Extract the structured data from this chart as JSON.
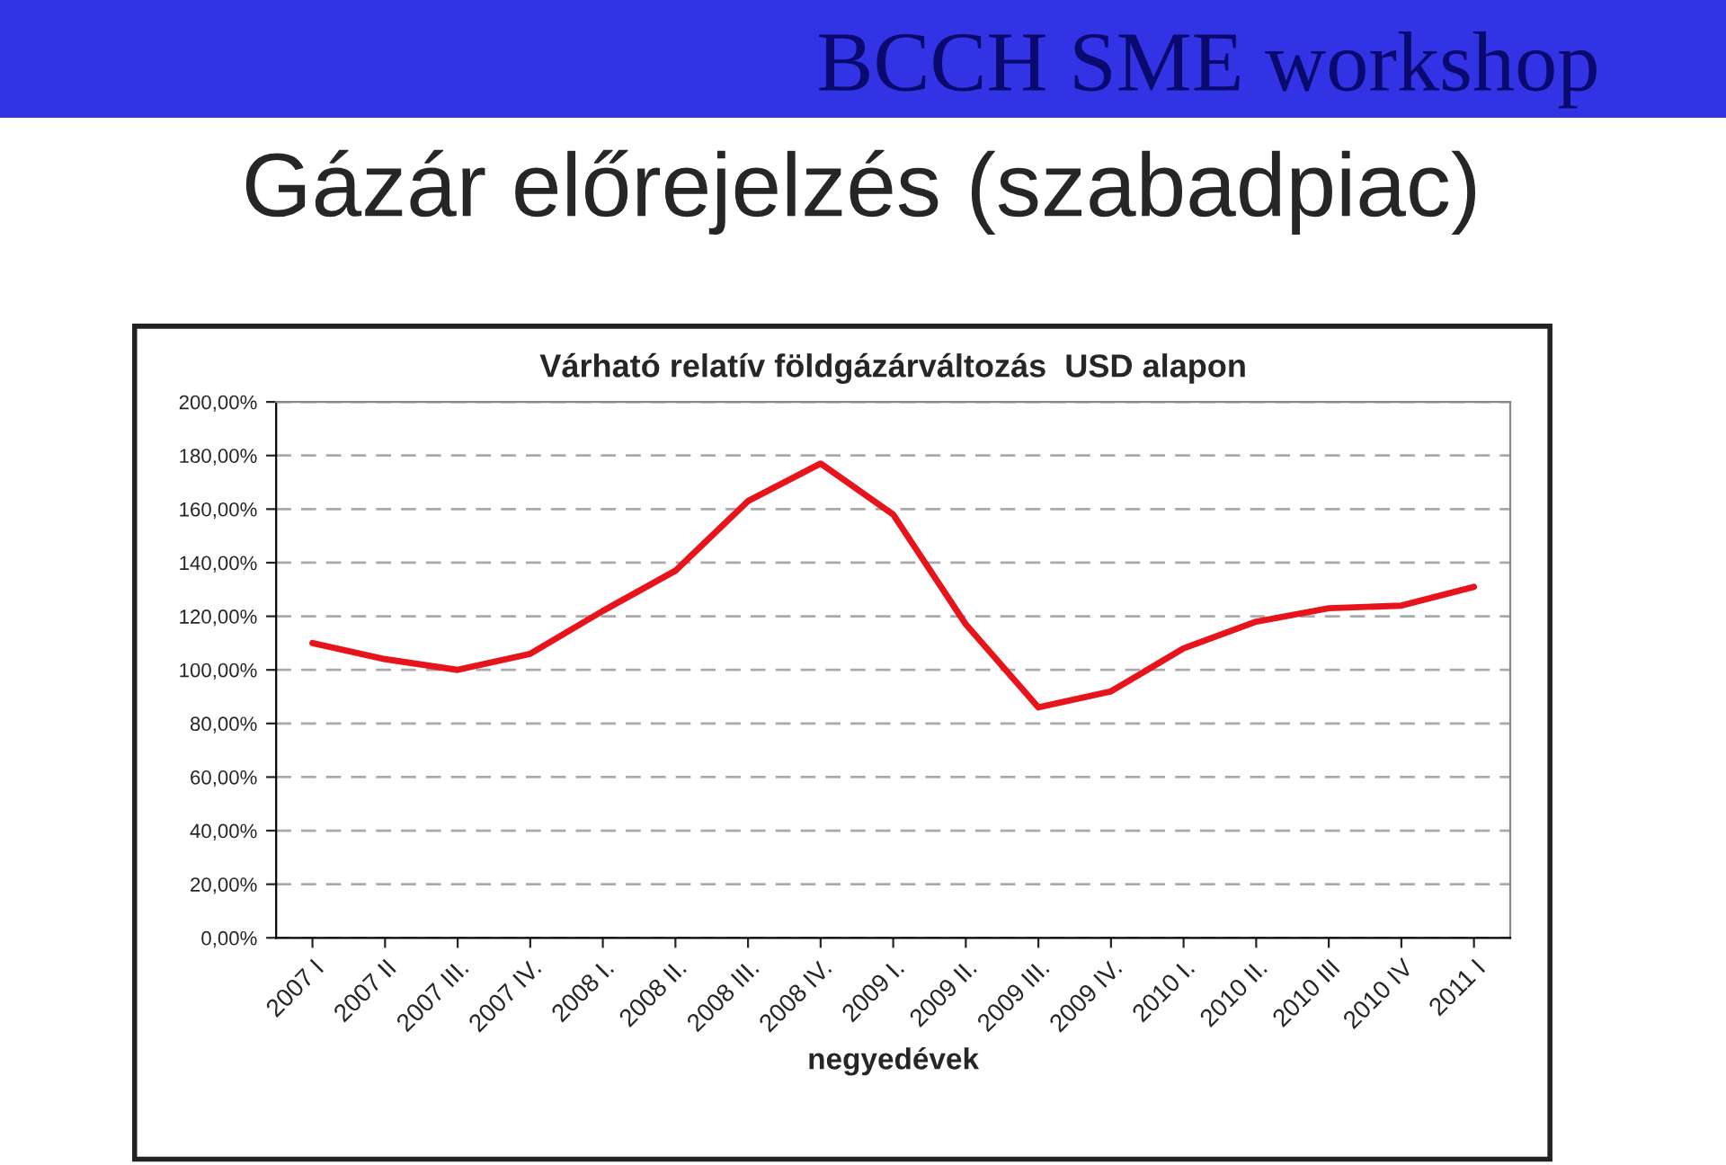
{
  "chart_data": {
    "type": "line",
    "title": "Gázár előrejelzés (szabadpiac)",
    "subtitle": "Várható relatív földgázárváltozás  USD alapon",
    "annotations": [
      "BCCH SME workshop"
    ],
    "xlabel": "negyedévek",
    "categories": [
      "2007 I",
      "2007 II",
      "2007 III.",
      "2007 IV.",
      "2008 I.",
      "2008 II.",
      "2008 III.",
      "2008 IV.",
      "2009 I.",
      "2009 II.",
      "2009 III.",
      "2009 IV.",
      "2010 I.",
      "2010 II.",
      "2010 III",
      "2010 IV",
      "2011 I"
    ],
    "series": [
      {
        "color": "#e8141b",
        "values": [
          110,
          104,
          100,
          106,
          122,
          137,
          163,
          177,
          158,
          117,
          86,
          92,
          108,
          118,
          123,
          124,
          131
        ]
      }
    ],
    "ylim": [
      0,
      200
    ],
    "yticks": [
      {
        "value": 0,
        "label": "0,00%"
      },
      {
        "value": 20,
        "label": "20,00%"
      },
      {
        "value": 40,
        "label": "40,00%"
      },
      {
        "value": 60,
        "label": "60,00%"
      },
      {
        "value": 80,
        "label": "80,00%"
      },
      {
        "value": 100,
        "label": "100,00%"
      },
      {
        "value": 120,
        "label": "120,00%"
      },
      {
        "value": 140,
        "label": "140,00%"
      },
      {
        "value": 160,
        "label": "160,00%"
      },
      {
        "value": 180,
        "label": "180,00%"
      },
      {
        "value": 200,
        "label": "200,00%"
      }
    ],
    "grid": "y",
    "marker": "none",
    "line_style": "solid"
  }
}
